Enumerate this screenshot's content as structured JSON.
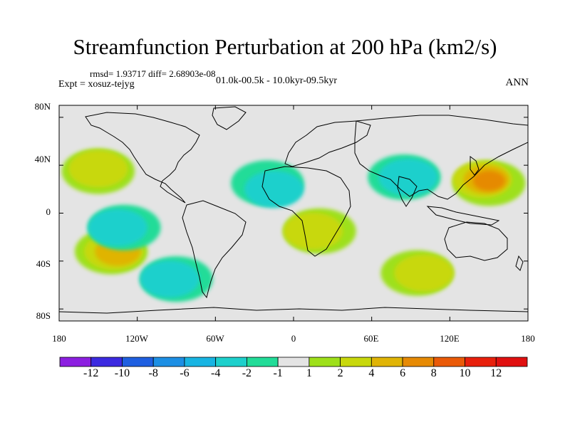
{
  "title": "Streamfunction Perturbation at 200 hPa (km2/s)",
  "stats_line": "rmsd= 1.93717 diff= 2.68903e-08",
  "experiment": "Expt = xosuz-tejyg",
  "period": "01.0k-00.5k - 10.0kyr-09.5kyr",
  "season": "ANN",
  "lat_labels": [
    "80N",
    "40N",
    "0",
    "40S",
    "80S"
  ],
  "lon_labels": [
    "180",
    "120W",
    "60W",
    "0",
    "60E",
    "120E",
    "180"
  ],
  "colorbar": {
    "labels": [
      "-12",
      "-10",
      "-8",
      "-6",
      "-4",
      "-2",
      "-1",
      "1",
      "2",
      "4",
      "6",
      "8",
      "10",
      "12"
    ],
    "colors": [
      "#8c1fe0",
      "#3c2ae0",
      "#1f5fe0",
      "#1d8fe4",
      "#18b4e2",
      "#1ed0cc",
      "#22dc98",
      "#e4e4e4",
      "#9ee01a",
      "#c8d80c",
      "#e0b406",
      "#e68a04",
      "#ea5a08",
      "#e8200c",
      "#e01010"
    ]
  },
  "field_blobs": [
    {
      "region": "NE Pacific",
      "lon": -150,
      "lat": 35,
      "level": 1
    },
    {
      "region": "NE Pacific core",
      "lon": -150,
      "lat": 37,
      "level": 2
    },
    {
      "region": "Western Pacific",
      "lon": 150,
      "lat": 25,
      "level": 1
    },
    {
      "region": "Western Pacific 2",
      "lon": 145,
      "lat": 28,
      "level": 2
    },
    {
      "region": "Western Pacific 3",
      "lon": 148,
      "lat": 28,
      "level": 3
    },
    {
      "region": "Western Pacific 4",
      "lon": 150,
      "lat": 27,
      "level": 4
    },
    {
      "region": "South Atlantic/Africa",
      "lon": 20,
      "lat": -15,
      "level": 1
    },
    {
      "region": "South Atlantic/Africa core",
      "lon": 15,
      "lat": -15,
      "level": 2
    },
    {
      "region": "S Pacific",
      "lon": -140,
      "lat": -32,
      "level": 1
    },
    {
      "region": "S Pacific 2",
      "lon": -138,
      "lat": -32,
      "level": 2
    },
    {
      "region": "S Pacific 3",
      "lon": -135,
      "lat": -32,
      "level": 3
    },
    {
      "region": "S Indian",
      "lon": 95,
      "lat": -50,
      "level": 1
    },
    {
      "region": "S Indian 2",
      "lon": 100,
      "lat": -50,
      "level": 2
    },
    {
      "region": "North Atlantic negative",
      "lon": -20,
      "lat": 25,
      "level": -1
    },
    {
      "region": "North Atlantic negative 2",
      "lon": -15,
      "lat": 20,
      "level": -2
    },
    {
      "region": "Arabia negative",
      "lon": 85,
      "lat": 30,
      "level": -1
    },
    {
      "region": "Arabia negative 2",
      "lon": 88,
      "lat": 30,
      "level": -2
    },
    {
      "region": "E Pacific negative",
      "lon": -130,
      "lat": -12,
      "level": -1
    },
    {
      "region": "E Pacific negative 2",
      "lon": -135,
      "lat": -12,
      "level": -2
    },
    {
      "region": "S America/Pacific negative",
      "lon": -90,
      "lat": -55,
      "level": -1
    },
    {
      "region": "S America negative 2",
      "lon": -95,
      "lat": -55,
      "level": -2
    }
  ]
}
